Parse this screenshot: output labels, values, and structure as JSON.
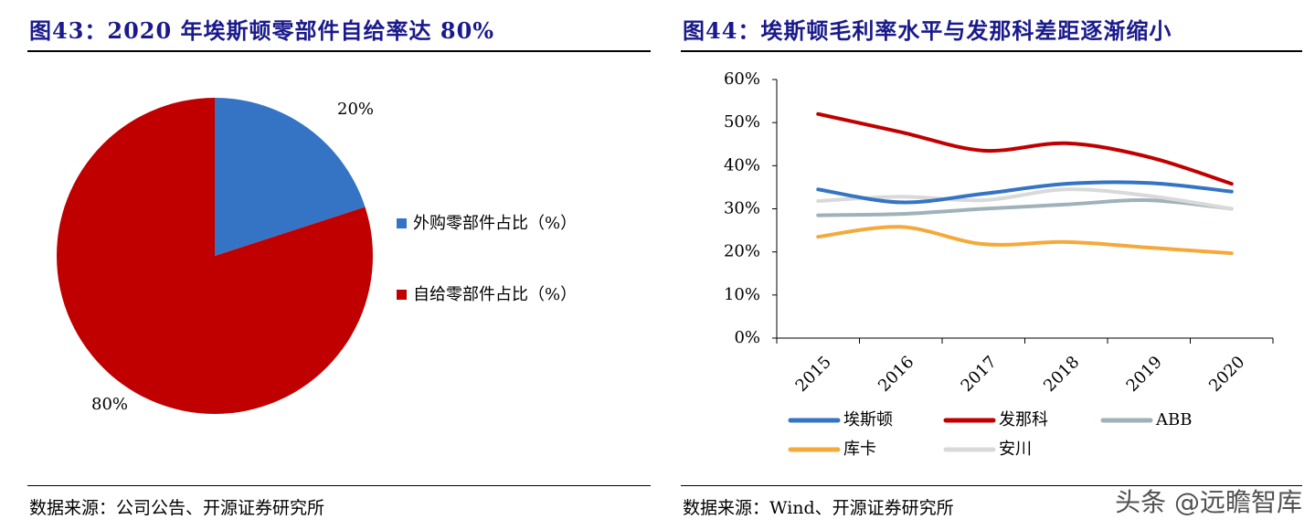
{
  "left": {
    "title": "图43：2020 年埃斯顿零部件自给率达 80%",
    "source": "数据来源：公司公告、开源证券研究所"
  },
  "right": {
    "title": "图44：埃斯顿毛利率水平与发那科差距逐渐缩小",
    "source": "数据来源：Wind、开源证券研究所"
  },
  "watermark": "头条 @远瞻智库",
  "chart_data": [
    {
      "type": "pie",
      "labels": [
        "外购零部件占比（%）",
        "自给零部件占比（%）"
      ],
      "values": [
        20,
        80
      ],
      "data_labels": [
        "20%",
        "80%"
      ],
      "colors": [
        "#3574c4",
        "#c00000"
      ],
      "legend_position": "right"
    },
    {
      "type": "line",
      "x": [
        "2015",
        "2016",
        "2017",
        "2018",
        "2019",
        "2020"
      ],
      "ylim": [
        0,
        60
      ],
      "yticks": [
        "0%",
        "10%",
        "20%",
        "30%",
        "40%",
        "50%",
        "60%"
      ],
      "grid": false,
      "legend_position": "bottom",
      "series": [
        {
          "name": "埃斯顿",
          "color": "#3574c4",
          "values": [
            34.5,
            31.5,
            33.5,
            35.8,
            36.0,
            34.0
          ]
        },
        {
          "name": "发那科",
          "color": "#c00000",
          "values": [
            52.0,
            47.8,
            43.5,
            45.2,
            42.0,
            35.8
          ]
        },
        {
          "name": "ABB",
          "color": "#9fb1b9",
          "values": [
            28.5,
            28.8,
            30.0,
            31.0,
            32.0,
            30.0
          ]
        },
        {
          "name": "库卡",
          "color": "#f5a93a",
          "values": [
            23.5,
            25.8,
            21.8,
            22.3,
            21.0,
            19.7
          ]
        },
        {
          "name": "安川",
          "color": "#d9d9d9",
          "values": [
            31.8,
            32.8,
            32.0,
            34.5,
            33.0,
            30.0
          ]
        }
      ]
    }
  ]
}
